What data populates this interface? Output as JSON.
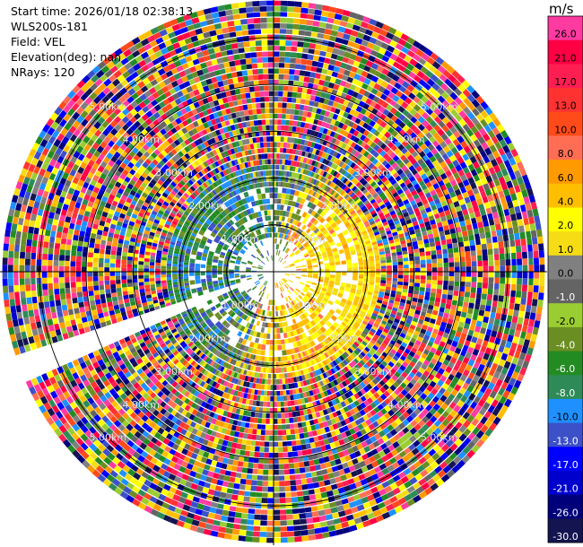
{
  "header": {
    "start_time": "Start time: 2026/01/18 02:38:13",
    "instrument": "WLS200s-181",
    "field": "Field: VEL",
    "elevation": "Elevation(deg): nan",
    "nrays": "NRays: 120"
  },
  "colorbar": {
    "unit": "m/s",
    "entries": [
      {
        "label": "26.0",
        "color": "#ff3aa0"
      },
      {
        "label": "21.0",
        "color": "#ff0045"
      },
      {
        "label": "17.0",
        "color": "#ff1e52"
      },
      {
        "label": "13.0",
        "color": "#ff3232"
      },
      {
        "label": "10.0",
        "color": "#ff4a1a"
      },
      {
        "label": "8.0",
        "color": "#ff6e54"
      },
      {
        "label": "6.0",
        "color": "#ff9a00"
      },
      {
        "label": "4.0",
        "color": "#ffbf00"
      },
      {
        "label": "2.0",
        "color": "#ffff00"
      },
      {
        "label": "1.0",
        "color": "#f5dc14"
      },
      {
        "label": "0.0",
        "color": "#808080"
      },
      {
        "label": "-1.0",
        "color": "#646464"
      },
      {
        "label": "-2.0",
        "color": "#9acd32"
      },
      {
        "label": "-4.0",
        "color": "#6b8e23"
      },
      {
        "label": "-6.0",
        "color": "#228b22"
      },
      {
        "label": "-8.0",
        "color": "#2e8b57"
      },
      {
        "label": "-10.0",
        "color": "#1e90ff"
      },
      {
        "label": "-13.0",
        "color": "#3c50c8"
      },
      {
        "label": "-17.0",
        "color": "#0000ff"
      },
      {
        "label": "-21.0",
        "color": "#0000cd"
      },
      {
        "label": "-26.0",
        "color": "#00007a"
      },
      {
        "label": "-30.0",
        "color": "#141450"
      }
    ]
  },
  "chart_data": {
    "type": "heatmap",
    "projection": "polar-ppi",
    "field": "VEL",
    "units": "m/s",
    "nrays": 120,
    "max_range_km": 5.8,
    "range_rings_km": [
      1,
      2,
      3,
      4,
      5
    ],
    "ring_labels": [
      "1.00km",
      "2.00km",
      "3.00km",
      "4.00km",
      "5.00km"
    ],
    "missing_sector_deg": [
      246,
      253
    ]
  }
}
